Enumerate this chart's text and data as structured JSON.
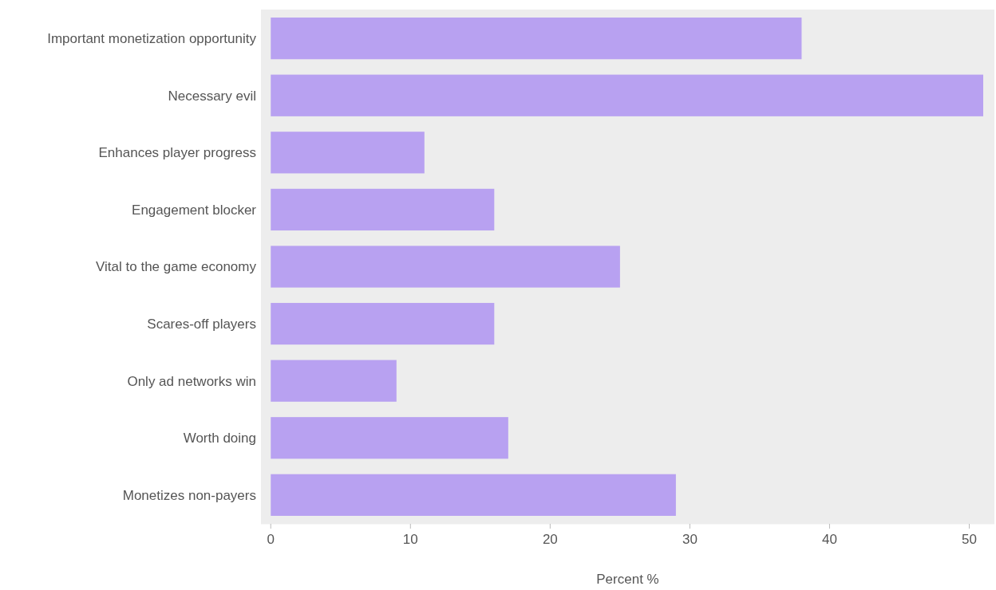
{
  "chart_data": {
    "type": "bar",
    "orientation": "horizontal",
    "xlabel": "Percent %",
    "categories": [
      "Important monetization opportunity",
      "Necessary evil",
      "Enhances player progress",
      "Engagement blocker",
      "Vital to the game economy",
      "Scares-off players",
      "Only ad networks win",
      "Worth doing",
      "Monetizes non-payers"
    ],
    "values": [
      38,
      51,
      11,
      16,
      25,
      16,
      9,
      17,
      29
    ],
    "color": "#b8a1f1",
    "xlim": [
      -0.7,
      51.8
    ],
    "xticks": [
      0,
      10,
      20,
      30,
      40,
      50
    ],
    "grid": false
  }
}
